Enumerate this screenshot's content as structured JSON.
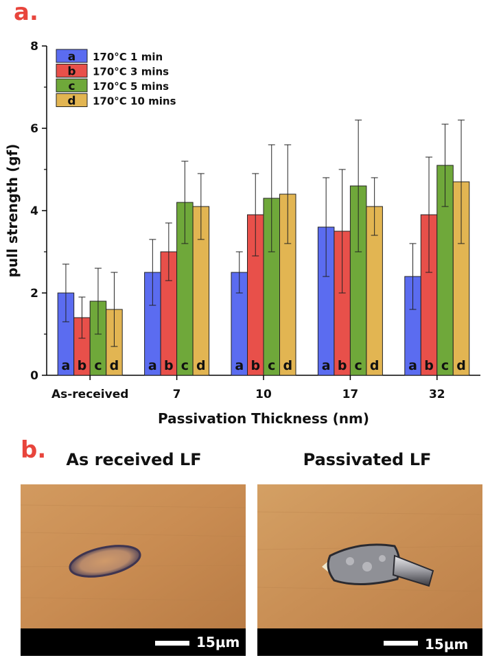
{
  "panel_a_label": "a.",
  "panel_b_label": "b.",
  "chart_data": {
    "type": "bar",
    "categories": [
      "As-received",
      "7",
      "10",
      "17",
      "32"
    ],
    "xlabel": "Passivation Thickness (nm)",
    "ylabel": "pull strength (gf)",
    "ylim": [
      0,
      8
    ],
    "yticks": [
      "0",
      "2",
      "4",
      "6",
      "8"
    ],
    "legend_position": "top-left",
    "series": [
      {
        "name": "170°C 1 min",
        "letter": "a",
        "color": "#5b6cf0",
        "values": [
          2.0,
          2.5,
          2.5,
          3.6,
          2.4
        ],
        "errors": [
          0.7,
          0.8,
          0.5,
          1.2,
          0.8
        ]
      },
      {
        "name": "170°C 3 mins",
        "letter": "b",
        "color": "#e8504a",
        "values": [
          1.4,
          3.0,
          3.9,
          3.5,
          3.9
        ],
        "errors": [
          0.5,
          0.7,
          1.0,
          1.5,
          1.4
        ]
      },
      {
        "name": "170°C 5 mins",
        "letter": "c",
        "color": "#6fa83a",
        "values": [
          1.8,
          4.2,
          4.3,
          4.6,
          5.1
        ],
        "errors": [
          0.8,
          1.0,
          1.3,
          1.6,
          1.0
        ]
      },
      {
        "name": "170°C 10 mins",
        "letter": "d",
        "color": "#e2b552",
        "values": [
          1.6,
          4.1,
          4.4,
          4.1,
          4.7
        ],
        "errors": [
          0.9,
          0.8,
          1.2,
          0.7,
          1.5
        ]
      }
    ]
  },
  "photos": [
    {
      "title": "As received LF",
      "scale_label": "15μm"
    },
    {
      "title": "Passivated LF",
      "scale_label": "15μm"
    }
  ]
}
